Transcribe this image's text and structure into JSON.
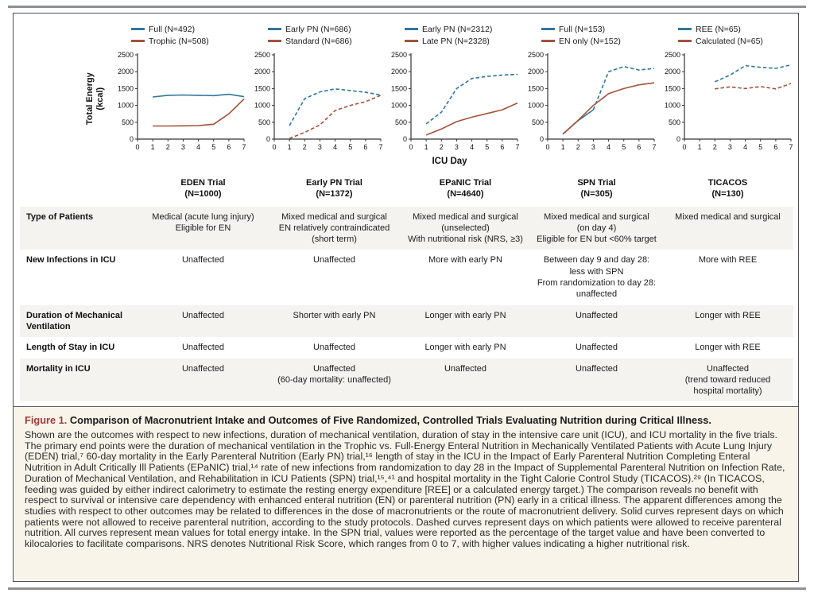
{
  "colors": {
    "blue": "#31759e",
    "red": "#a3523a"
  },
  "chart_data": {
    "type": "line",
    "xlabel": "ICU Day",
    "ylabel": "Total Energy (kcal)",
    "ylabel_lines": [
      "Total Energy",
      "(kcal)"
    ],
    "ylim": [
      0,
      2500
    ],
    "yticks": [
      0,
      500,
      1000,
      1500,
      2000,
      2500
    ],
    "xticks": [
      0,
      1,
      2,
      3,
      4,
      5,
      6,
      7
    ],
    "x_days": [
      1,
      2,
      3,
      4,
      5,
      6,
      7
    ],
    "charts": [
      {
        "trial": "EDEN Trial",
        "series": [
          {
            "name": "Full (N=492)",
            "color": "blue",
            "dash": "solid",
            "values": [
              1250,
              1300,
              1310,
              1300,
              1290,
              1330,
              1260
            ]
          },
          {
            "name": "Trophic (N=508)",
            "color": "red",
            "dash": "solid",
            "values": [
              390,
              390,
              395,
              400,
              440,
              750,
              1190
            ]
          }
        ]
      },
      {
        "trial": "Early PN Trial",
        "series": [
          {
            "name": "Early PN (N=686)",
            "color": "blue",
            "dash": "dashed",
            "values": [
              400,
              1200,
              1400,
              1490,
              1440,
              1390,
              1310
            ]
          },
          {
            "name": "Standard (N=686)",
            "color": "red",
            "dash": "dashed",
            "values": [
              20,
              200,
              420,
              850,
              1000,
              1110,
              1300
            ]
          }
        ]
      },
      {
        "trial": "EPaNIC Trial",
        "series": [
          {
            "name": "Early PN (N=2312)",
            "color": "blue",
            "dash": "dashed",
            "values": [
              450,
              800,
              1500,
              1800,
              1860,
              1900,
              1920
            ]
          },
          {
            "name": "Late PN (N=2328)",
            "color": "red",
            "dash": "solid",
            "values": [
              120,
              300,
              520,
              650,
              760,
              870,
              1070
            ]
          }
        ]
      },
      {
        "trial": "SPN Trial",
        "series": [
          {
            "name": "Full (N=153)",
            "color": "blue",
            "dash": "solid-then-dashed",
            "solid_until_day": 3,
            "values": [
              150,
              550,
              870,
              2000,
              2150,
              2050,
              2100
            ]
          },
          {
            "name": "EN only (N=152)",
            "color": "red",
            "dash": "solid",
            "values": [
              150,
              560,
              1000,
              1350,
              1500,
              1610,
              1670
            ]
          }
        ]
      },
      {
        "trial": "TICACOS",
        "series": [
          {
            "name": "REE (N=65)",
            "color": "blue",
            "dash": "dashed",
            "days": [
              2,
              3,
              4,
              5,
              6,
              7
            ],
            "values": [
              1700,
              1900,
              2180,
              2130,
              2100,
              2200
            ]
          },
          {
            "name": "Calculated (N=65)",
            "color": "red",
            "dash": "dashed",
            "days": [
              2,
              3,
              4,
              5,
              6,
              7
            ],
            "values": [
              1490,
              1550,
              1500,
              1560,
              1490,
              1650
            ]
          }
        ]
      }
    ]
  },
  "table": {
    "columns": [
      {
        "name": "EDEN Trial",
        "n": "(N=1000)"
      },
      {
        "name": "Early PN Trial",
        "n": "(N=1372)"
      },
      {
        "name": "EPaNIC Trial",
        "n": "(N=4640)"
      },
      {
        "name": "SPN Trial",
        "n": "(N=305)"
      },
      {
        "name": "TICACOS",
        "n": "(N=130)"
      }
    ],
    "rows": [
      {
        "label": "Type of Patients",
        "shaded": true,
        "cells": [
          [
            "Medical (acute lung injury)",
            "Eligible for EN"
          ],
          [
            "Mixed medical and surgical",
            "EN relatively contraindicated",
            "(short term)"
          ],
          [
            "Mixed medical and surgical",
            "(unselected)",
            "With nutritional risk (NRS, ≥3)"
          ],
          [
            "Mixed medical and surgical",
            "(on day 4)",
            "Eligible for EN but <60% target"
          ],
          [
            "Mixed medical and surgical"
          ]
        ]
      },
      {
        "label": "New Infections in ICU",
        "shaded": false,
        "cells": [
          [
            "Unaffected"
          ],
          [
            "Unaffected"
          ],
          [
            "More with early PN"
          ],
          [
            "Between day 9 and day 28:",
            "less with SPN",
            "From randomization to day 28:",
            "unaffected"
          ],
          [
            "More with REE"
          ]
        ]
      },
      {
        "label": "Duration of Mechanical Ventilation",
        "shaded": true,
        "cells": [
          [
            "Unaffected"
          ],
          [
            "Shorter with early PN"
          ],
          [
            "Longer with early PN"
          ],
          [
            "Unaffected"
          ],
          [
            "Longer with REE"
          ]
        ]
      },
      {
        "label": "Length of Stay in ICU",
        "shaded": false,
        "cells": [
          [
            "Unaffected"
          ],
          [
            "Unaffected"
          ],
          [
            "Longer with early PN"
          ],
          [
            "Unaffected"
          ],
          [
            "Longer with REE"
          ]
        ]
      },
      {
        "label": "Mortality in ICU",
        "shaded": true,
        "cells": [
          [
            "Unaffected"
          ],
          [
            "Unaffected",
            "(60-day mortality: unaffected)"
          ],
          [
            "Unaffected"
          ],
          [
            "Unaffected"
          ],
          [
            "Unaffected",
            "(trend toward reduced",
            "hospital mortality)"
          ]
        ]
      }
    ]
  },
  "caption": {
    "fig_label": "Figure 1.",
    "title": "Comparison of Macronutrient Intake and Outcomes of Five Randomized, Controlled Trials Evaluating Nutrition during Critical Illness.",
    "body": "Shown are the outcomes with respect to new infections, duration of mechanical ventilation, duration of stay in the intensive care unit (ICU), and ICU mortality in the five trials. The primary end points were the duration of mechanical ventilation in the Trophic vs. Full-Energy Enteral Nutrition in Mechanically Ventilated Patients with Acute Lung Injury (EDEN) trial,⁷ 60-day mortality in the Early Parenteral Nutrition (Early PN) trial,¹⁶ length of stay in the ICU in the Impact of Early Parenteral Nutrition Completing Enteral Nutrition in Adult Critically Ill Patients (EPaNIC) trial,¹⁴ rate of new infections from randomization to day 28 in the Impact of Supplemental Parenteral Nutrition on Infection Rate, Duration of Mechanical Ventilation, and Rehabilitation in ICU Patients (SPN) trial,¹⁵,⁴¹ and hospital mortality in the Tight Calorie Control Study (TICACOS).²⁹ (In TICACOS, feeding was guided by either indirect calorimetry to estimate the resting energy expenditure [REE] or a calculated energy target.) The comparison reveals no benefit with respect to survival or intensive care dependency with enhanced enteral nutrition (EN) or parenteral nutrition (PN) early in a critical illness. The apparent differences among the studies with respect to other outcomes may be related to differences in the dose of macronutrients or the route of macronutrient delivery. Solid curves represent days on which patients were not allowed to receive parenteral nutrition, according to the study protocols. Dashed curves represent days on which patients were allowed to receive parenteral nutrition. All curves represent mean values for total energy intake. In the SPN trial, values were reported as the percentage of the target value and have been converted to kilocalories to facilitate comparisons. NRS denotes Nutritional Risk Score, which ranges from 0 to 7, with higher values indicating a higher nutritional risk."
  }
}
